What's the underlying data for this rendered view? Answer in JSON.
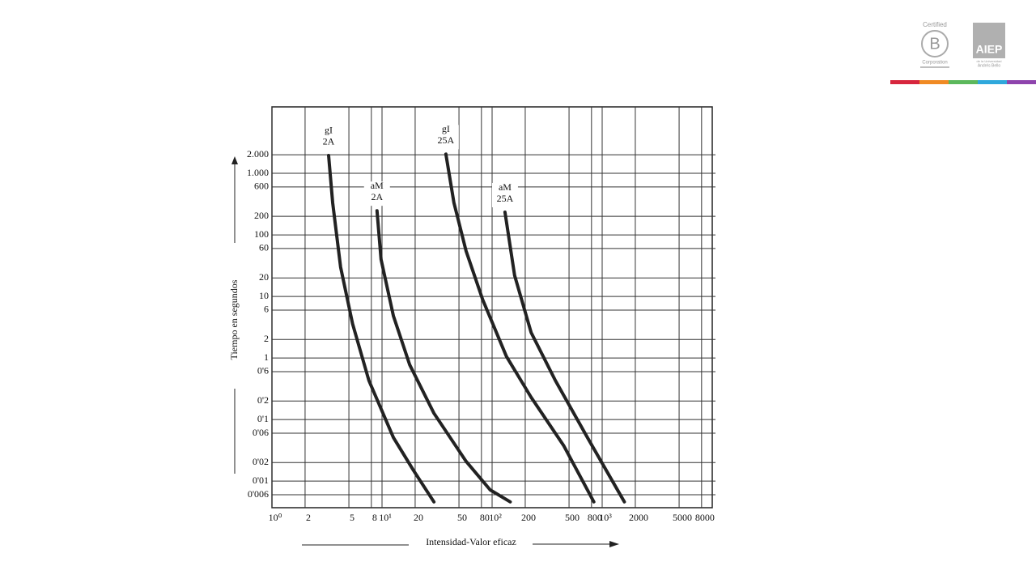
{
  "logos": {
    "certified": "Certified",
    "b": "B",
    "corporation": "Corporation",
    "aiep": "AIEP",
    "university": "de la Universidad",
    "andres_bello": "Andrés Bello",
    "stripe_colors": [
      "#d7263d",
      "#f08a24",
      "#5cb85c",
      "#2fa8dc",
      "#8e44ad"
    ]
  },
  "chart_data": {
    "type": "line",
    "x_label": "Intensidad-Valor eficaz",
    "y_label": "Tiempo en segundos",
    "xscale": "log",
    "yscale": "log",
    "grid": true,
    "xlim": [
      1,
      10000
    ],
    "ylim": [
      0.0037,
      12000
    ],
    "xticks": [
      {
        "value": 1,
        "label": "10⁰"
      },
      2,
      5,
      8,
      {
        "value": 10,
        "label": "10¹"
      },
      20,
      50,
      80,
      {
        "value": 100,
        "label": "10²"
      },
      200,
      500,
      800,
      {
        "value": 1000,
        "label": "10³"
      },
      2000,
      5000,
      8000
    ],
    "xtick_labels_short": [
      null
    ],
    "yticks": [
      {
        "value": 2000,
        "label": "2.000"
      },
      {
        "value": 1000,
        "label": "1.000"
      },
      600,
      200,
      100,
      60,
      20,
      10,
      6,
      2,
      1,
      {
        "value": 0.6,
        "label": "0'6"
      },
      {
        "value": 0.2,
        "label": "0'2"
      },
      {
        "value": 0.1,
        "label": "0'1"
      },
      {
        "value": 0.06,
        "label": "0'06"
      },
      {
        "value": 0.02,
        "label": "0'02"
      },
      {
        "value": 0.01,
        "label": "0'01"
      },
      {
        "value": 0.006,
        "label": "0'006"
      }
    ],
    "series": [
      {
        "label": [
          "gI",
          "2A"
        ],
        "color": "#222222",
        "x": [
          3.27,
          3.56,
          4.2,
          5.4,
          7.6,
          12.7,
          19.3,
          29.6
        ],
        "values": [
          1950,
          335,
          30,
          3.6,
          0.43,
          0.051,
          0.015,
          0.0046
        ]
      },
      {
        "label": [
          "aM",
          "2A"
        ],
        "color": "#222222",
        "x": [
          9.0,
          9.8,
          12.7,
          17.8,
          29.6,
          58,
          96,
          146
        ],
        "values": [
          247,
          40,
          4.8,
          0.78,
          0.127,
          0.021,
          0.0072,
          0.0046
        ]
      },
      {
        "label": [
          "gI",
          "25A"
        ],
        "color": "#222222",
        "x": [
          38,
          45,
          58,
          82,
          135,
          226,
          446,
          840
        ],
        "values": [
          2050,
          335,
          55,
          8.9,
          1.06,
          0.23,
          0.038,
          0.0046
        ]
      },
      {
        "label": [
          "aM",
          "25A"
        ],
        "color": "#222222",
        "x": [
          131,
          160,
          226,
          376,
          735,
          1590
        ],
        "values": [
          234,
          22,
          2.6,
          0.43,
          0.051,
          0.0046
        ]
      }
    ]
  }
}
